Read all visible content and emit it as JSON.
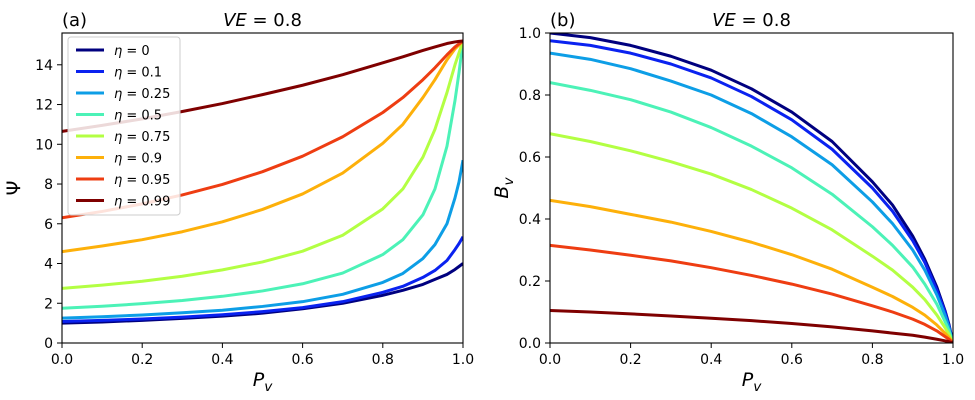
{
  "chart_data": [
    {
      "type": "line",
      "panel": "(a)",
      "title": "VE = 0.8",
      "xlabel": "P_v",
      "ylabel": "Ψ",
      "xlim": [
        0,
        1
      ],
      "ylim": [
        0,
        15.6
      ],
      "xticks": [
        "0.0",
        "0.2",
        "0.4",
        "0.6",
        "0.8",
        "1.0"
      ],
      "yticks": [
        "0",
        "2",
        "4",
        "6",
        "8",
        "10",
        "12",
        "14"
      ],
      "grid": false,
      "legend": "top-left",
      "x": [
        0,
        0.1,
        0.2,
        0.3,
        0.4,
        0.5,
        0.6,
        0.7,
        0.8,
        0.85,
        0.9,
        0.93,
        0.96,
        0.98,
        0.99,
        1.0
      ],
      "series": [
        {
          "name": "η = 0",
          "color": "#00007f",
          "values": [
            1.0,
            1.06,
            1.14,
            1.24,
            1.35,
            1.5,
            1.72,
            2.0,
            2.4,
            2.65,
            2.95,
            3.2,
            3.45,
            3.7,
            3.85,
            4.0
          ]
        },
        {
          "name": "η = 0.1",
          "color": "#0a22f0",
          "values": [
            1.08,
            1.14,
            1.21,
            1.3,
            1.42,
            1.58,
            1.78,
            2.08,
            2.55,
            2.85,
            3.3,
            3.65,
            4.15,
            4.7,
            5.0,
            5.35
          ]
        },
        {
          "name": "η = 0.25",
          "color": "#0d9ee6",
          "values": [
            1.25,
            1.32,
            1.41,
            1.52,
            1.65,
            1.84,
            2.08,
            2.45,
            3.05,
            3.5,
            4.25,
            4.95,
            6.0,
            7.3,
            8.1,
            9.2
          ]
        },
        {
          "name": "η = 0.5",
          "color": "#4cf2b7",
          "values": [
            1.75,
            1.85,
            1.98,
            2.14,
            2.35,
            2.62,
            2.98,
            3.52,
            4.45,
            5.2,
            6.45,
            7.75,
            9.9,
            12.2,
            13.6,
            15.2
          ]
        },
        {
          "name": "η = 0.75",
          "color": "#b3ff43",
          "values": [
            2.75,
            2.91,
            3.11,
            3.36,
            3.68,
            4.08,
            4.62,
            5.42,
            6.75,
            7.75,
            9.35,
            10.75,
            12.6,
            14.0,
            14.6,
            15.2
          ]
        },
        {
          "name": "η = 0.9",
          "color": "#fdb00a",
          "values": [
            4.6,
            4.88,
            5.2,
            5.6,
            6.1,
            6.72,
            7.5,
            8.55,
            10.05,
            11.0,
            12.35,
            13.25,
            14.25,
            14.8,
            15.0,
            15.2
          ]
        },
        {
          "name": "η = 0.95",
          "color": "#ee3d12",
          "values": [
            6.3,
            6.62,
            7.0,
            7.45,
            7.98,
            8.62,
            9.4,
            10.38,
            11.6,
            12.35,
            13.25,
            13.85,
            14.5,
            14.9,
            15.05,
            15.2
          ]
        },
        {
          "name": "η = 0.99",
          "color": "#7f0000",
          "values": [
            10.65,
            10.95,
            11.28,
            11.65,
            12.05,
            12.5,
            12.97,
            13.5,
            14.1,
            14.4,
            14.72,
            14.9,
            15.07,
            15.15,
            15.18,
            15.2
          ]
        }
      ]
    },
    {
      "type": "line",
      "panel": "(b)",
      "title": "VE = 0.8",
      "xlabel": "P_v",
      "ylabel": "B_v",
      "xlim": [
        0,
        1
      ],
      "ylim": [
        0,
        1
      ],
      "xticks": [
        "0.0",
        "0.2",
        "0.4",
        "0.6",
        "0.8",
        "1.0"
      ],
      "yticks": [
        "0.0",
        "0.2",
        "0.4",
        "0.6",
        "0.8",
        "1.0"
      ],
      "grid": false,
      "legend": "none",
      "x": [
        0,
        0.1,
        0.2,
        0.3,
        0.4,
        0.5,
        0.6,
        0.7,
        0.8,
        0.85,
        0.9,
        0.93,
        0.96,
        0.98,
        0.99,
        1.0
      ],
      "series": [
        {
          "name": "η = 0",
          "color": "#00007f",
          "values": [
            1.0,
            0.985,
            0.96,
            0.925,
            0.88,
            0.82,
            0.745,
            0.65,
            0.52,
            0.445,
            0.345,
            0.27,
            0.18,
            0.105,
            0.06,
            0.0
          ]
        },
        {
          "name": "η = 0.1",
          "color": "#0a22f0",
          "values": [
            0.975,
            0.96,
            0.935,
            0.9,
            0.855,
            0.795,
            0.72,
            0.625,
            0.5,
            0.425,
            0.33,
            0.26,
            0.17,
            0.1,
            0.055,
            0.0
          ]
        },
        {
          "name": "η = 0.25",
          "color": "#0d9ee6",
          "values": [
            0.935,
            0.915,
            0.885,
            0.845,
            0.8,
            0.74,
            0.665,
            0.575,
            0.455,
            0.385,
            0.3,
            0.235,
            0.155,
            0.09,
            0.05,
            0.0
          ]
        },
        {
          "name": "η = 0.5",
          "color": "#4cf2b7",
          "values": [
            0.84,
            0.815,
            0.785,
            0.745,
            0.695,
            0.635,
            0.565,
            0.48,
            0.375,
            0.315,
            0.245,
            0.19,
            0.125,
            0.07,
            0.04,
            0.0
          ]
        },
        {
          "name": "η = 0.75",
          "color": "#b3ff43",
          "values": [
            0.675,
            0.65,
            0.62,
            0.585,
            0.545,
            0.495,
            0.435,
            0.365,
            0.28,
            0.235,
            0.18,
            0.14,
            0.09,
            0.05,
            0.028,
            0.0
          ]
        },
        {
          "name": "η = 0.9",
          "color": "#fdb00a",
          "values": [
            0.46,
            0.44,
            0.415,
            0.39,
            0.36,
            0.325,
            0.285,
            0.238,
            0.18,
            0.15,
            0.115,
            0.09,
            0.058,
            0.032,
            0.018,
            0.0
          ]
        },
        {
          "name": "η = 0.95",
          "color": "#ee3d12",
          "values": [
            0.315,
            0.3,
            0.283,
            0.265,
            0.243,
            0.218,
            0.19,
            0.158,
            0.12,
            0.1,
            0.077,
            0.06,
            0.039,
            0.021,
            0.012,
            0.0
          ]
        },
        {
          "name": "η = 0.99",
          "color": "#7f0000",
          "values": [
            0.105,
            0.1,
            0.094,
            0.087,
            0.08,
            0.072,
            0.063,
            0.052,
            0.039,
            0.032,
            0.025,
            0.019,
            0.012,
            0.007,
            0.004,
            0.0
          ]
        }
      ]
    }
  ]
}
